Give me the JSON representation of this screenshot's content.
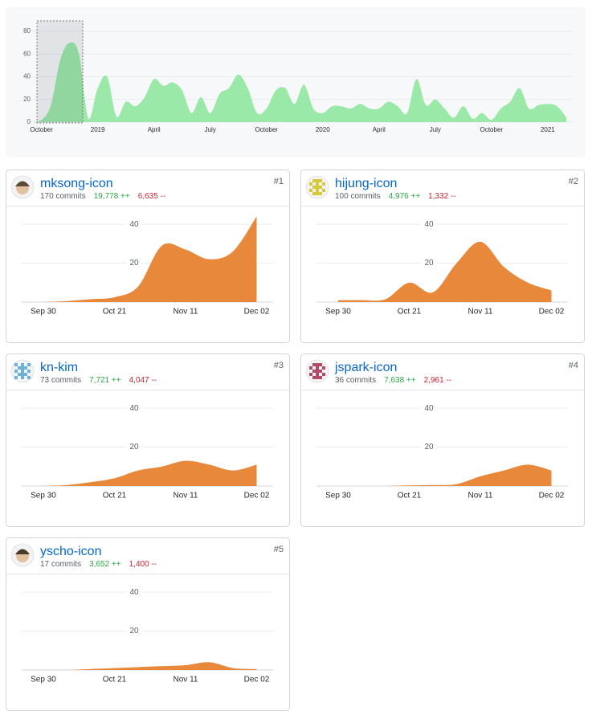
{
  "overview": {
    "type": "area",
    "color": "#9be9a8",
    "categories": [
      null,
      "October",
      null,
      null,
      null,
      null,
      null,
      "2019",
      null,
      null,
      null,
      null,
      null,
      "April",
      null,
      null,
      null,
      null,
      null,
      "July",
      null,
      null,
      null,
      null,
      null,
      "October",
      null,
      null,
      null,
      null,
      null,
      "2020",
      null,
      null,
      null,
      null,
      null,
      "April",
      null,
      null,
      null,
      null,
      null,
      "July",
      null,
      null,
      null,
      null,
      null,
      "October",
      null,
      null,
      null,
      null,
      null,
      "2021",
      null,
      null
    ],
    "values": [
      0,
      2,
      15,
      55,
      70,
      60,
      3,
      30,
      40,
      5,
      18,
      14,
      22,
      38,
      32,
      35,
      28,
      8,
      22,
      8,
      25,
      30,
      42,
      30,
      8,
      12,
      28,
      30,
      16,
      33,
      12,
      8,
      14,
      14,
      12,
      16,
      12,
      12,
      18,
      14,
      8,
      38,
      15,
      20,
      12,
      4,
      14,
      3,
      8,
      2,
      12,
      18,
      30,
      12,
      15,
      16,
      14,
      4
    ],
    "ylim": [
      0,
      90
    ],
    "yticks": [
      0,
      20,
      40,
      60,
      80
    ],
    "grid": true
  },
  "contributors": [
    {
      "rank": "#1",
      "name": "mksong-icon",
      "commits": "170 commits",
      "additions": "19,778 ++",
      "deletions": "6,635 --",
      "chart": {
        "type": "area",
        "color": "#e8883a",
        "categories": [
          "Sep 30",
          null,
          null,
          "Oct 21",
          null,
          null,
          "Nov 11",
          null,
          null,
          "Dec 02"
        ],
        "values": [
          0,
          0.5,
          1.5,
          2.5,
          8,
          29,
          27,
          22,
          26,
          44
        ],
        "ylim": [
          0,
          45
        ],
        "yticks": [
          20,
          40
        ],
        "grid": true
      }
    },
    {
      "rank": "#2",
      "name": "hijung-icon",
      "commits": "100 commits",
      "additions": "4,976 ++",
      "deletions": "1,332 --",
      "chart": {
        "type": "area",
        "color": "#e8883a",
        "categories": [
          "Sep 30",
          null,
          null,
          "Oct 21",
          null,
          null,
          "Nov 11",
          null,
          null,
          "Dec 02"
        ],
        "values": [
          1,
          1,
          1.5,
          10,
          5,
          20,
          31,
          18,
          10,
          6
        ],
        "ylim": [
          0,
          45
        ],
        "yticks": [
          20,
          40
        ],
        "grid": true
      }
    },
    {
      "rank": "#3",
      "name": "kn-kim",
      "commits": "73 commits",
      "additions": "7,721 ++",
      "deletions": "4,047 --",
      "chart": {
        "type": "area",
        "color": "#e8883a",
        "categories": [
          "Sep 30",
          null,
          null,
          "Oct 21",
          null,
          null,
          "Nov 11",
          null,
          null,
          "Dec 02"
        ],
        "values": [
          0,
          0.5,
          2,
          4,
          8,
          10,
          13,
          11,
          8,
          11
        ],
        "ylim": [
          0,
          45
        ],
        "yticks": [
          20,
          40
        ],
        "grid": true
      }
    },
    {
      "rank": "#4",
      "name": "jspark-icon",
      "commits": "36 commits",
      "additions": "7,638 ++",
      "deletions": "2,961 --",
      "chart": {
        "type": "area",
        "color": "#e8883a",
        "categories": [
          "Sep 30",
          null,
          null,
          "Oct 21",
          null,
          null,
          "Nov 11",
          null,
          null,
          "Dec 02"
        ],
        "values": [
          0,
          0,
          0,
          0.3,
          0.5,
          1,
          5,
          8,
          11,
          8
        ],
        "ylim": [
          0,
          45
        ],
        "yticks": [
          20,
          40
        ],
        "grid": true
      }
    },
    {
      "rank": "#5",
      "name": "yscho-icon",
      "commits": "17 commits",
      "additions": "3,652 ++",
      "deletions": "1,400 --",
      "chart": {
        "type": "area",
        "color": "#e8883a",
        "categories": [
          "Sep 30",
          null,
          null,
          "Oct 21",
          null,
          null,
          "Nov 11",
          null,
          null,
          "Dec 02"
        ],
        "values": [
          0,
          0,
          0.5,
          1,
          1.5,
          2,
          2.5,
          4,
          1,
          0.5
        ],
        "ylim": [
          0,
          45
        ],
        "yticks": [
          20,
          40
        ],
        "grid": true
      }
    }
  ]
}
